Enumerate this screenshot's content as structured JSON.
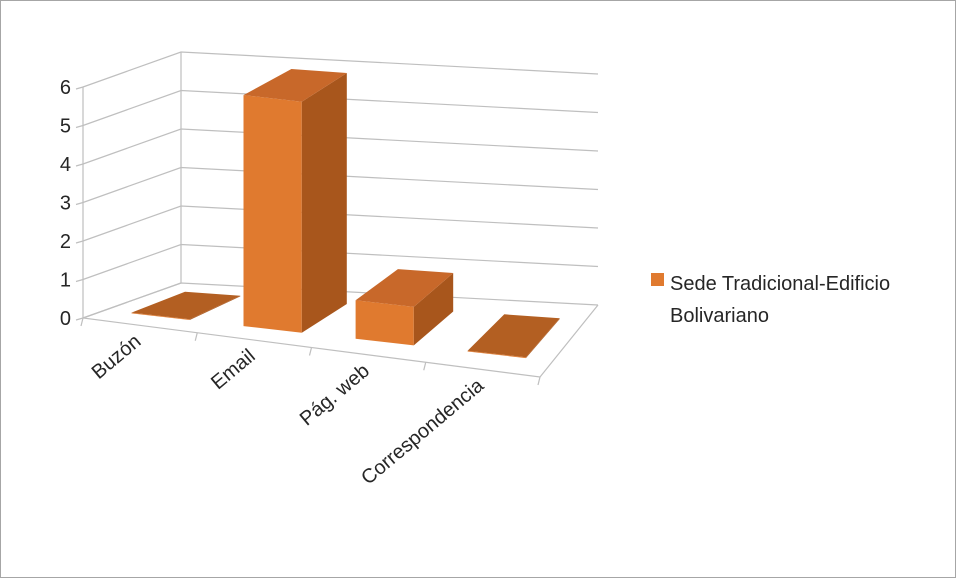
{
  "chart_data": {
    "type": "bar",
    "categories": [
      "Buzón",
      "Email",
      "Pág. web",
      "Correspondencia"
    ],
    "series": [
      {
        "name": "Sede Tradicional-Edificio Bolivariano",
        "values": [
          0,
          6,
          1,
          0
        ],
        "color": "#e07a2f"
      }
    ],
    "ylim": [
      0,
      6
    ],
    "yticks": [
      0,
      1,
      2,
      3,
      4,
      5,
      6
    ],
    "grid": true,
    "legend_position": "right",
    "is_3d": true
  },
  "legend": {
    "line1": "Sede Tradicional-Edificio",
    "line2": "Bolivariano"
  }
}
